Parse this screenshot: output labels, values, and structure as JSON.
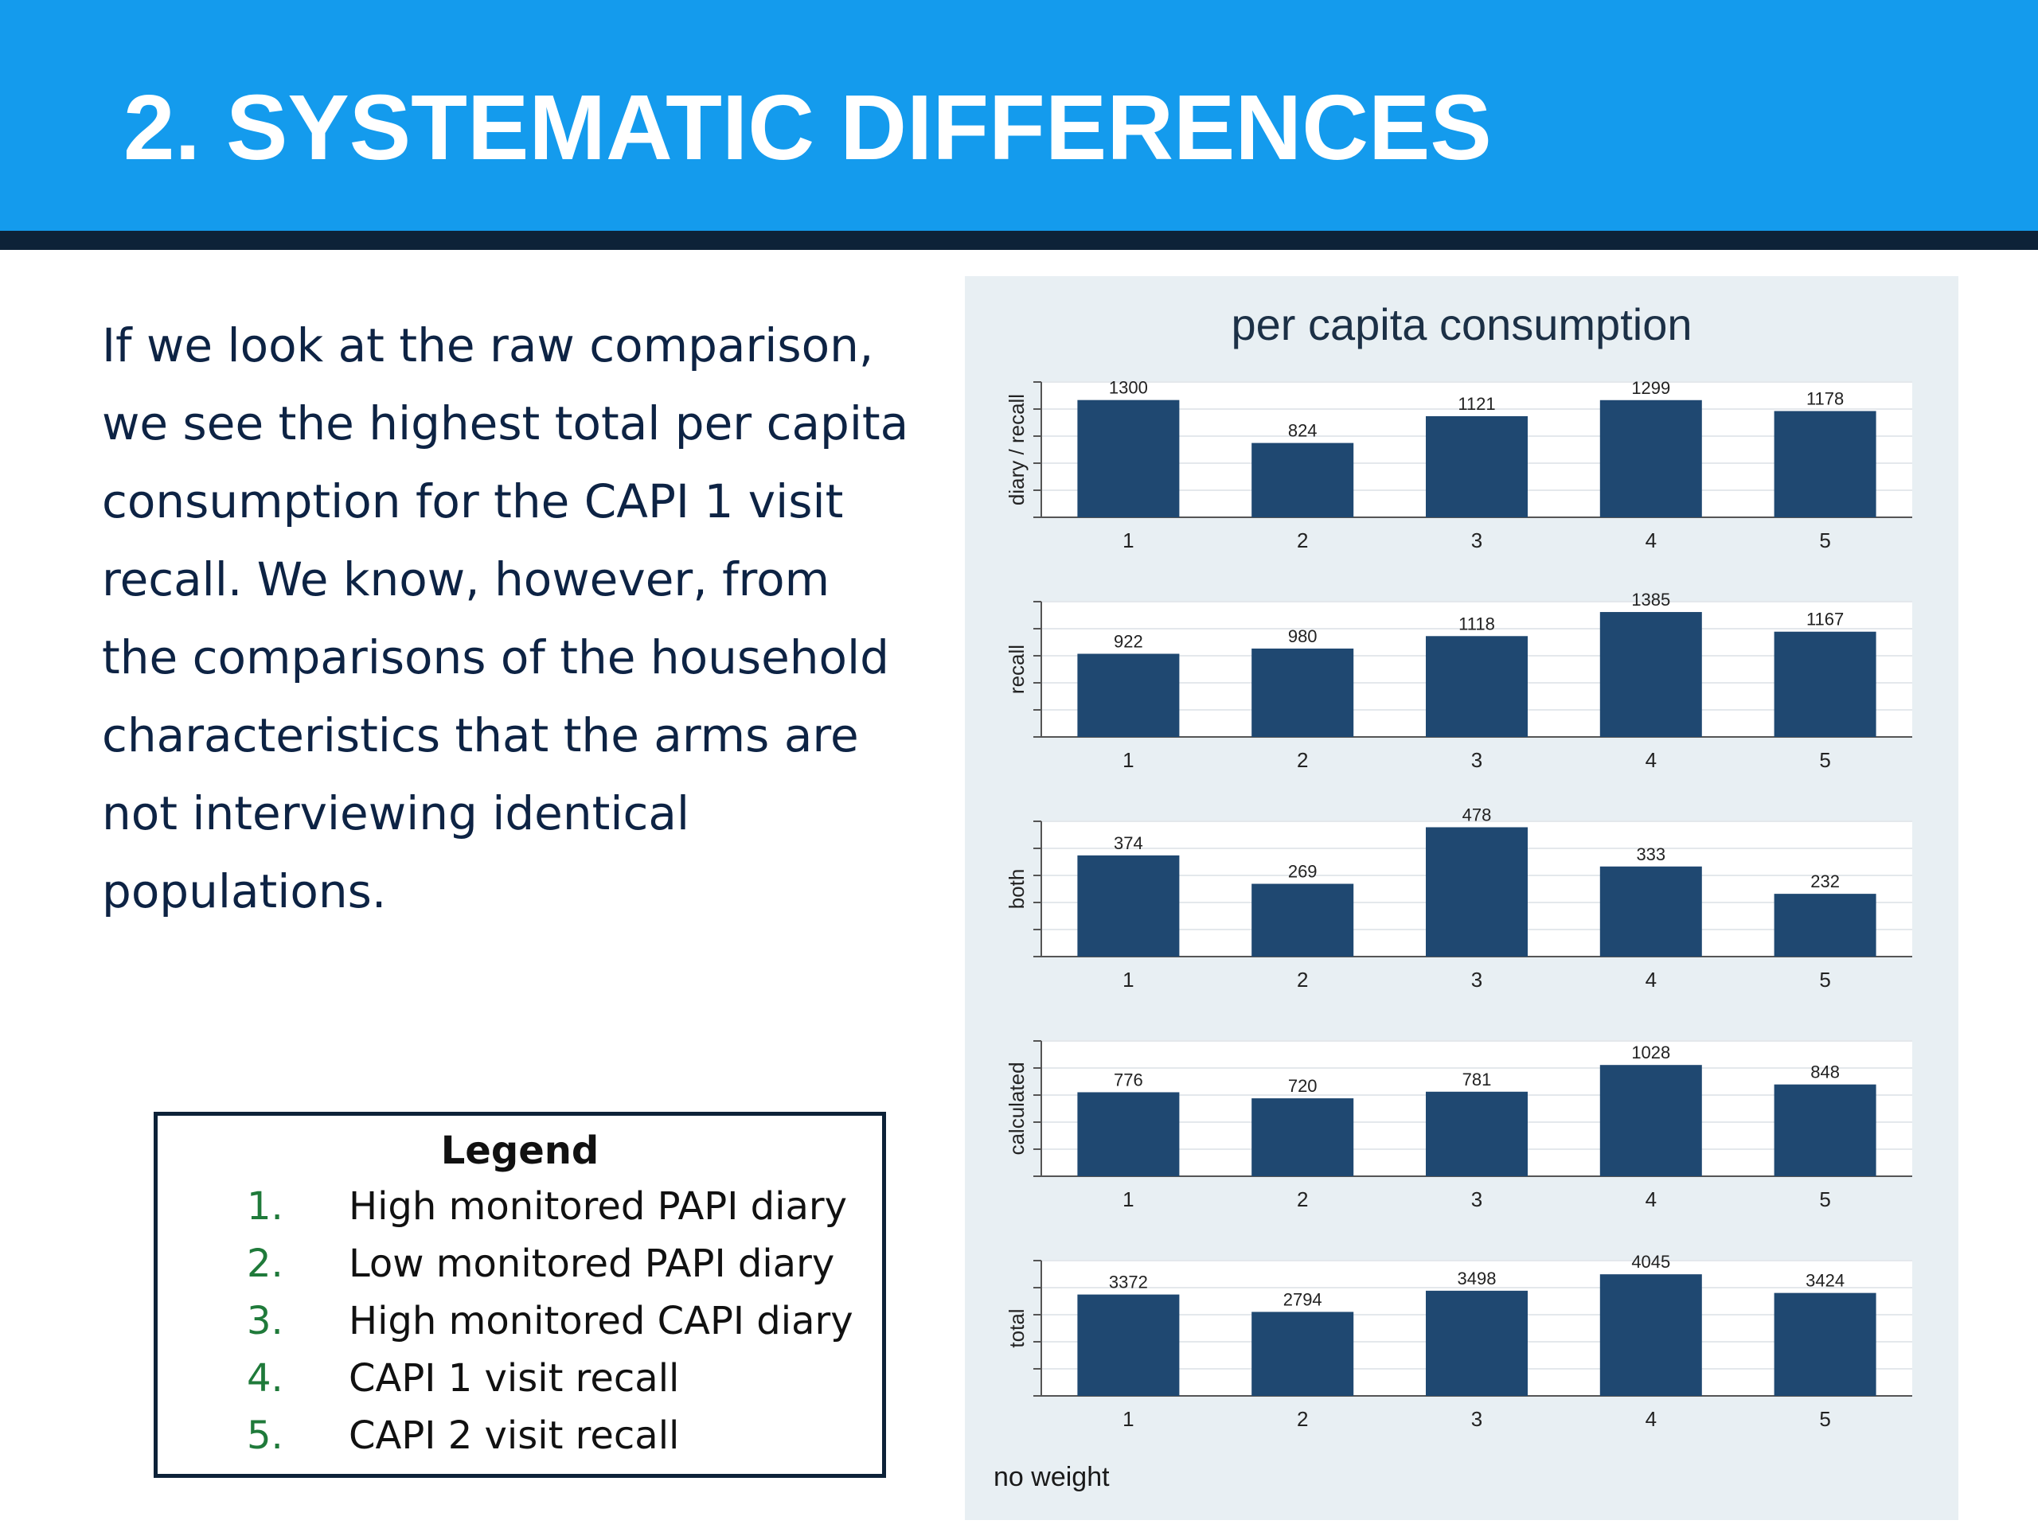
{
  "slide": {
    "title": "2. SYSTEMATIC DIFFERENCES",
    "body_lines": [
      "If we look at the raw comparison,",
      "we see the highest total per capita",
      "consumption for the CAPI 1 visit",
      "recall.  We know, however, from",
      "the comparisons of the household",
      "characteristics that the arms are",
      "not interviewing identical",
      "populations."
    ]
  },
  "legend": {
    "title": "Legend",
    "items": [
      {
        "num": "1.",
        "label": "High monitored PAPI diary"
      },
      {
        "num": "2.",
        "label": "Low monitored PAPI diary"
      },
      {
        "num": "3.",
        "label": "High monitored CAPI diary"
      },
      {
        "num": "4.",
        "label": "CAPI 1 visit recall"
      },
      {
        "num": "5.",
        "label": "CAPI 2 visit recall"
      }
    ]
  },
  "colors": {
    "header": "#149bed",
    "header_rule": "#0d2238",
    "bar": "#1f4871",
    "panel_bg": "#e8eff3",
    "plot_bg": "#ffffff",
    "body_text": "#0d2344",
    "legend_number": "#1f7a3a"
  },
  "chart_data": {
    "type": "bar",
    "title": "per capita consumption",
    "note": "no weight",
    "categories": [
      "1",
      "2",
      "3",
      "4",
      "5"
    ],
    "grid": true,
    "panels": [
      {
        "ylabel": "diary / recall",
        "values": [
          1300,
          824,
          1121,
          1299,
          1178
        ],
        "ylim": [
          0,
          1500
        ]
      },
      {
        "ylabel": "recall",
        "values": [
          922,
          980,
          1118,
          1385,
          1167
        ],
        "ylim": [
          0,
          1500
        ]
      },
      {
        "ylabel": "both",
        "values": [
          374,
          269,
          478,
          333,
          232
        ],
        "ylim": [
          0,
          500
        ]
      },
      {
        "ylabel": "calculated",
        "values": [
          776,
          720,
          781,
          1028,
          848
        ],
        "ylim": [
          0,
          1250
        ]
      },
      {
        "ylabel": "total",
        "values": [
          3372,
          2794,
          3498,
          4045,
          3424
        ],
        "ylim": [
          0,
          4500
        ]
      }
    ]
  }
}
